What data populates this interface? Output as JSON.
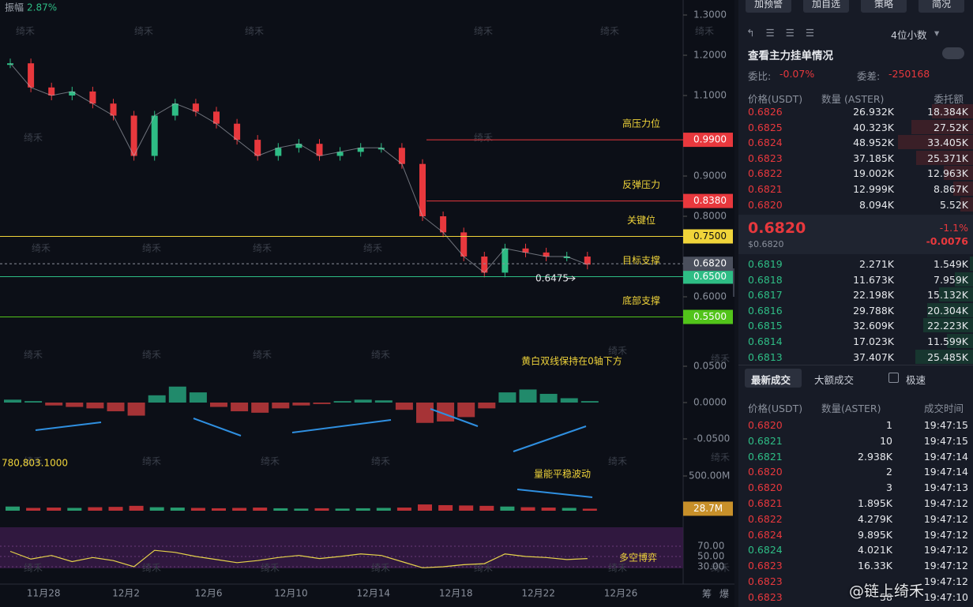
{
  "header": {
    "amplitude_label": "振幅",
    "amplitude": "2.87%"
  },
  "watermark": "绮禾",
  "brand": "@链上绮禾",
  "price_chart": {
    "yticks": [
      {
        "value": 1.3,
        "label": "1.3000"
      },
      {
        "value": 1.2,
        "label": "1.2000"
      },
      {
        "value": 1.1,
        "label": "1.1000"
      },
      {
        "value": 0.9,
        "label": "0.9000"
      },
      {
        "value": 0.8,
        "label": "0.8000"
      },
      {
        "value": 0.6,
        "label": "0.6000"
      }
    ],
    "dates": [
      "11月28",
      "12月2",
      "12月6",
      "12月10",
      "12月14",
      "12月18",
      "12月22",
      "12月26"
    ],
    "closes": [
      1.18,
      1.12,
      1.1,
      1.11,
      1.08,
      1.05,
      0.95,
      1.05,
      1.08,
      1.06,
      1.03,
      0.99,
      0.95,
      0.97,
      0.98,
      0.95,
      0.96,
      0.97,
      0.97,
      0.93,
      0.8,
      0.76,
      0.7,
      0.66,
      0.72,
      0.71,
      0.7,
      0.7,
      0.68
    ],
    "levels": [
      {
        "value": 0.99,
        "label": "0.9900",
        "note": "高压力位",
        "color": "#e8383d"
      },
      {
        "value": 0.838,
        "label": "0.8380",
        "note": "反弹压力",
        "color": "#e8383d"
      },
      {
        "value": 0.75,
        "label": "0.7500",
        "note": "关键位",
        "color": "#f0d43a"
      },
      {
        "value": 0.65,
        "label": "0.6500",
        "note": "目标支撑",
        "color": "#2ebd85"
      },
      {
        "value": 0.55,
        "label": "0.5500",
        "note": "底部支撑",
        "color": "#52c41a"
      }
    ],
    "current": {
      "value": 0.682,
      "label": "0.6820"
    },
    "low": {
      "value": 0.6475,
      "label": "0.6475"
    }
  },
  "macd": {
    "yticks": [
      {
        "value": 0.05,
        "label": "0.0500"
      },
      {
        "value": 0,
        "label": "0.0000"
      },
      {
        "value": -0.05,
        "label": "-0.0500"
      }
    ],
    "hist": [
      0.004,
      0.002,
      -0.004,
      -0.006,
      -0.008,
      -0.012,
      -0.018,
      0.01,
      0.022,
      0.014,
      -0.006,
      -0.012,
      -0.014,
      -0.008,
      -0.004,
      -0.002,
      0.002,
      0.004,
      0.003,
      -0.01,
      -0.028,
      -0.026,
      -0.02,
      -0.008,
      0.014,
      0.018,
      0.012,
      0.006,
      0.002
    ],
    "note": "黄白双线保持在0轴下方"
  },
  "volume": {
    "top_label": "780,803.1000",
    "tick": {
      "value": 500000000,
      "label": "500.00M"
    },
    "current": {
      "value": 28700000,
      "label": "28.7M"
    },
    "values": [
      60000000,
      40000000,
      45000000,
      40000000,
      50000000,
      55000000,
      70000000,
      50000000,
      45000000,
      40000000,
      35000000,
      40000000,
      45000000,
      35000000,
      30000000,
      35000000,
      30000000,
      35000000,
      40000000,
      45000000,
      90000000,
      80000000,
      75000000,
      70000000,
      60000000,
      50000000,
      45000000,
      40000000,
      28700000
    ],
    "note": "量能平稳波动"
  },
  "rsi": {
    "yticks": [
      {
        "value": 70,
        "label": "70.00"
      },
      {
        "value": 50,
        "label": "50.00"
      },
      {
        "value": 30,
        "label": "30.00"
      }
    ],
    "values": [
      60,
      45,
      52,
      40,
      48,
      42,
      30,
      62,
      58,
      50,
      44,
      38,
      42,
      48,
      52,
      46,
      50,
      55,
      52,
      40,
      28,
      30,
      34,
      36,
      55,
      50,
      48,
      44,
      46
    ],
    "note": "多空博弈"
  },
  "footer_icons": [
    "筹",
    "爆"
  ],
  "panel": {
    "buttons": [
      "加预警",
      "加自选",
      "策略",
      "简况"
    ],
    "decimals": "4位小数",
    "main_orders": "查看主力挂单情况",
    "ratio_label": "委比:",
    "ratio": "-0.07%",
    "diff_label": "委差:",
    "diff": "-250168",
    "book_headers": [
      "价格(USDT)",
      "数量 (ASTER)",
      "委托额"
    ],
    "asks": [
      [
        "0.6826",
        "26.932K",
        "18.384K"
      ],
      [
        "0.6825",
        "40.323K",
        "27.52K"
      ],
      [
        "0.6824",
        "48.952K",
        "33.405K"
      ],
      [
        "0.6823",
        "37.185K",
        "25.371K"
      ],
      [
        "0.6822",
        "19.002K",
        "12.963K"
      ],
      [
        "0.6821",
        "12.999K",
        "8.867K"
      ],
      [
        "0.6820",
        "8.094K",
        "5.52K"
      ]
    ],
    "mid": {
      "price": "0.6820",
      "usd": "$0.6820",
      "change_pct": "-1.1%",
      "change": "-0.0076"
    },
    "bids": [
      [
        "0.6819",
        "2.271K",
        "1.549K"
      ],
      [
        "0.6818",
        "11.673K",
        "7.959K"
      ],
      [
        "0.6817",
        "22.198K",
        "15.132K"
      ],
      [
        "0.6816",
        "29.788K",
        "20.304K"
      ],
      [
        "0.6815",
        "32.609K",
        "22.223K"
      ],
      [
        "0.6814",
        "17.023K",
        "11.599K"
      ],
      [
        "0.6813",
        "37.407K",
        "25.485K"
      ]
    ],
    "tabs": [
      "最新成交",
      "大额成交",
      "极速"
    ],
    "trade_headers": [
      "价格(USDT)",
      "数量(ASTER)",
      "成交时间"
    ],
    "trades": [
      {
        "price": "0.6820",
        "qty": "1",
        "time": "19:47:15",
        "side": "sell"
      },
      {
        "price": "0.6821",
        "qty": "10",
        "time": "19:47:15",
        "side": "buy"
      },
      {
        "price": "0.6821",
        "qty": "2.938K",
        "time": "19:47:14",
        "side": "buy"
      },
      {
        "price": "0.6820",
        "qty": "2",
        "time": "19:47:14",
        "side": "sell"
      },
      {
        "price": "0.6820",
        "qty": "3",
        "time": "19:47:13",
        "side": "sell"
      },
      {
        "price": "0.6821",
        "qty": "1.895K",
        "time": "19:47:12",
        "side": "sell"
      },
      {
        "price": "0.6822",
        "qty": "4.279K",
        "time": "19:47:12",
        "side": "sell"
      },
      {
        "price": "0.6824",
        "qty": "9.895K",
        "time": "19:47:12",
        "side": "sell"
      },
      {
        "price": "0.6824",
        "qty": "4.021K",
        "time": "19:47:12",
        "side": "buy"
      },
      {
        "price": "0.6823",
        "qty": "16.33K",
        "time": "19:47:12",
        "side": "sell"
      },
      {
        "price": "0.6823",
        "time": "19:47:12",
        "side": "sell"
      },
      {
        "price": "0.6823",
        "qty": "58",
        "time": "19:47:10",
        "side": "sell"
      }
    ]
  }
}
